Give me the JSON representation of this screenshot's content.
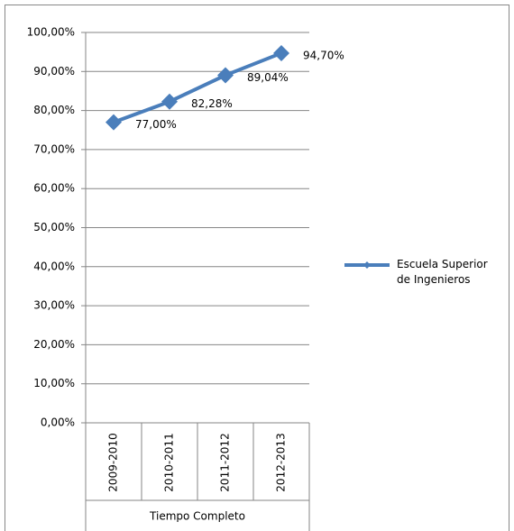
{
  "chart_data": {
    "type": "line",
    "categories": [
      "2009-2010",
      "2010-2011",
      "2011-2012",
      "2012-2013"
    ],
    "x_label": "Tiempo Completo",
    "series": [
      {
        "name": "Escuela Superior de Ingenieros",
        "color": "#4a7ebb",
        "values": [
          77.0,
          82.28,
          89.04,
          94.7
        ],
        "value_labels": [
          "77,00%",
          "82,28%",
          "89,04%",
          "94,70%"
        ]
      }
    ],
    "ylim": [
      0,
      100
    ],
    "yticks": [
      {
        "value": 0,
        "label": "0,00%"
      },
      {
        "value": 10,
        "label": "10,00%"
      },
      {
        "value": 20,
        "label": "20,00%"
      },
      {
        "value": 30,
        "label": "30,00%"
      },
      {
        "value": 40,
        "label": "40,00%"
      },
      {
        "value": 50,
        "label": "50,00%"
      },
      {
        "value": 60,
        "label": "60,00%"
      },
      {
        "value": 70,
        "label": "70,00%"
      },
      {
        "value": 80,
        "label": "80,00%"
      },
      {
        "value": 90,
        "label": "90,00%"
      },
      {
        "value": 100,
        "label": "100,00%"
      }
    ],
    "grid": true,
    "legend": "right"
  }
}
